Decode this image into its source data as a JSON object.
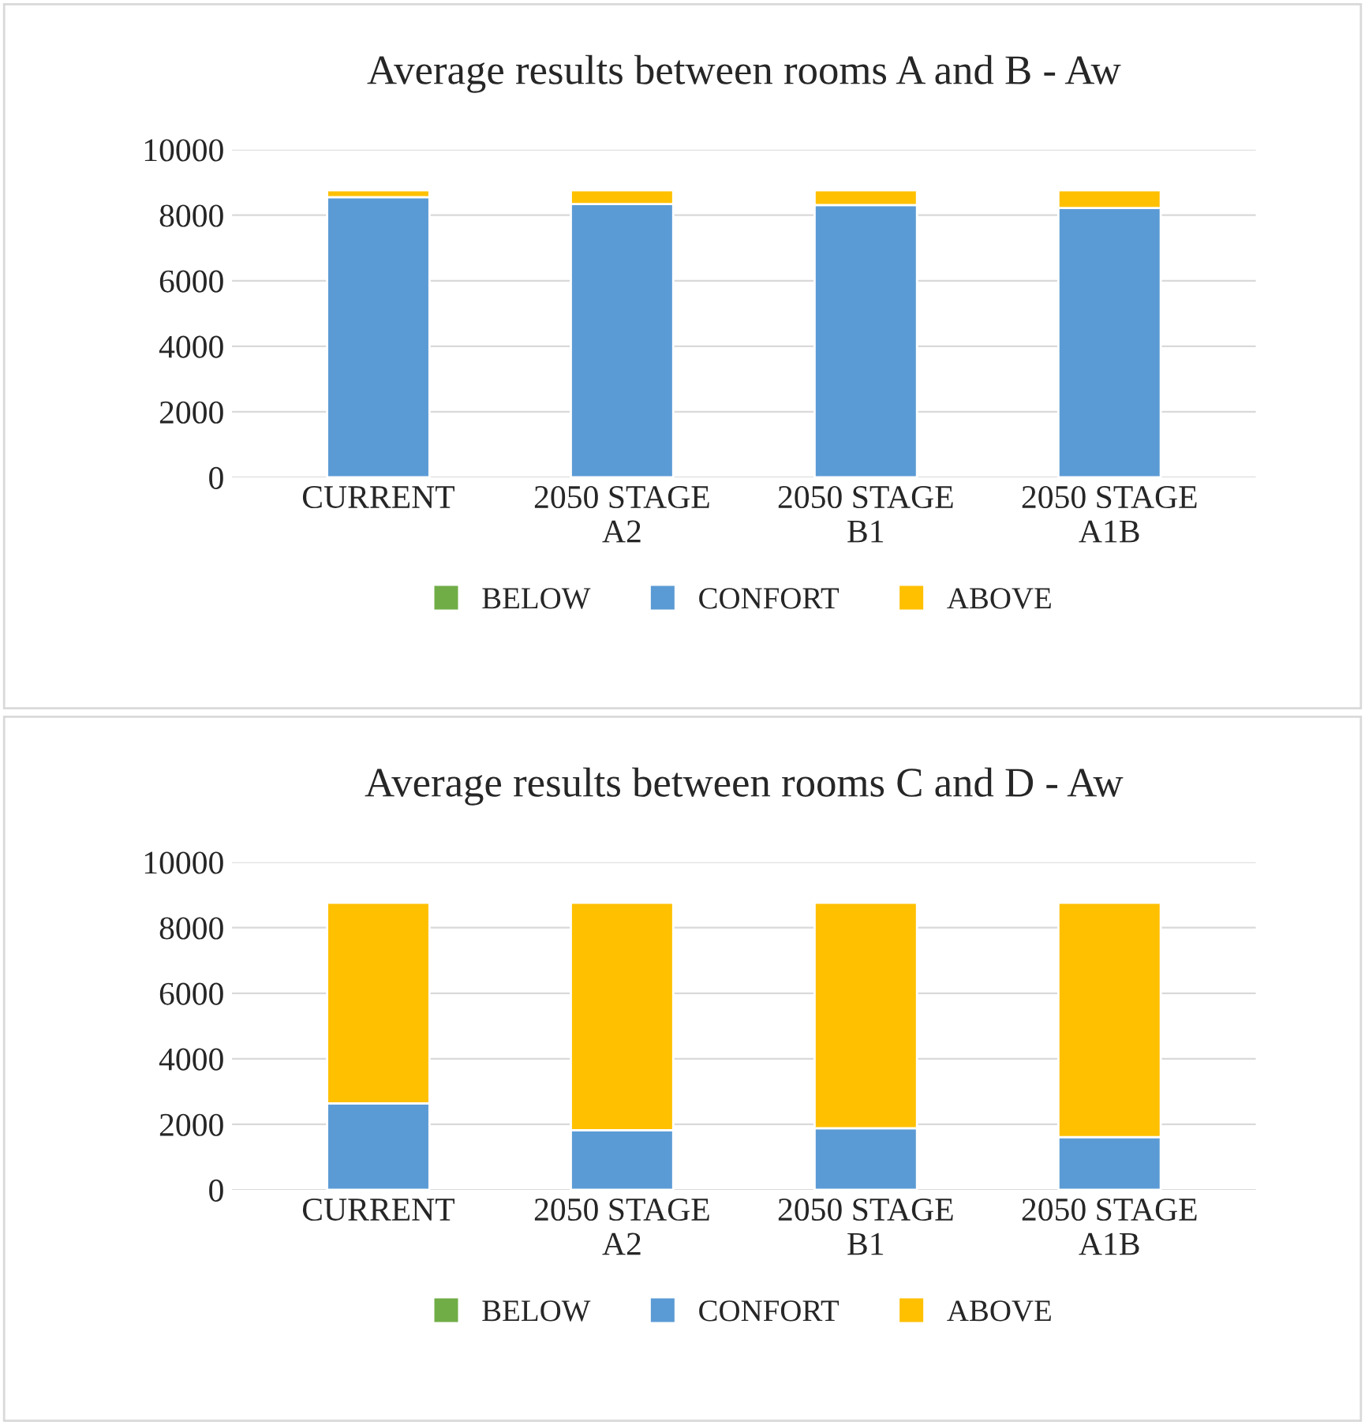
{
  "chart_data": [
    {
      "type": "bar",
      "title": "Average results between rooms A and B - Aw",
      "stacked": true,
      "categories": [
        "CURRENT",
        "2050 STAGE\nA2",
        "2050 STAGE\nB1",
        "2050 STAGE\nA1B"
      ],
      "series": [
        {
          "name": "BELOW",
          "color": "#70ad47",
          "values": [
            0,
            0,
            0,
            0
          ]
        },
        {
          "name": "CONFORT",
          "color": "#5b9bd5",
          "values": [
            8550,
            8340,
            8310,
            8220
          ]
        },
        {
          "name": "ABOVE",
          "color": "#ffc000",
          "values": [
            210,
            420,
            450,
            540
          ]
        }
      ],
      "ylim": [
        0,
        10000
      ],
      "yticks": [
        0,
        2000,
        4000,
        6000,
        8000,
        10000
      ],
      "grid": "y",
      "legend": "bottom"
    },
    {
      "type": "bar",
      "title": "Average results between rooms C and D - Aw",
      "stacked": true,
      "categories": [
        "CURRENT",
        "2050 STAGE\nA2",
        "2050 STAGE\nB1",
        "2050 STAGE\nA1B"
      ],
      "series": [
        {
          "name": "BELOW",
          "color": "#70ad47",
          "values": [
            0,
            0,
            0,
            0
          ]
        },
        {
          "name": "CONFORT",
          "color": "#5b9bd5",
          "values": [
            2640,
            1820,
            1880,
            1610
          ]
        },
        {
          "name": "ABOVE",
          "color": "#ffc000",
          "values": [
            6120,
            6940,
            6880,
            7150
          ]
        }
      ],
      "ylim": [
        0,
        10000
      ],
      "yticks": [
        0,
        2000,
        4000,
        6000,
        8000,
        10000
      ],
      "grid": "y",
      "legend": "bottom"
    }
  ]
}
